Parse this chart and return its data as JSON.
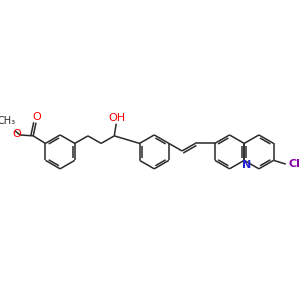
{
  "background_color": "#ffffff",
  "bond_color": "#2a2a2a",
  "atom_colors": {
    "O": "#ff0000",
    "N": "#2222cc",
    "Cl": "#8800aa",
    "C": "#2a2a2a"
  },
  "figsize": [
    3.0,
    3.0
  ],
  "dpi": 100,
  "lw": 1.1
}
